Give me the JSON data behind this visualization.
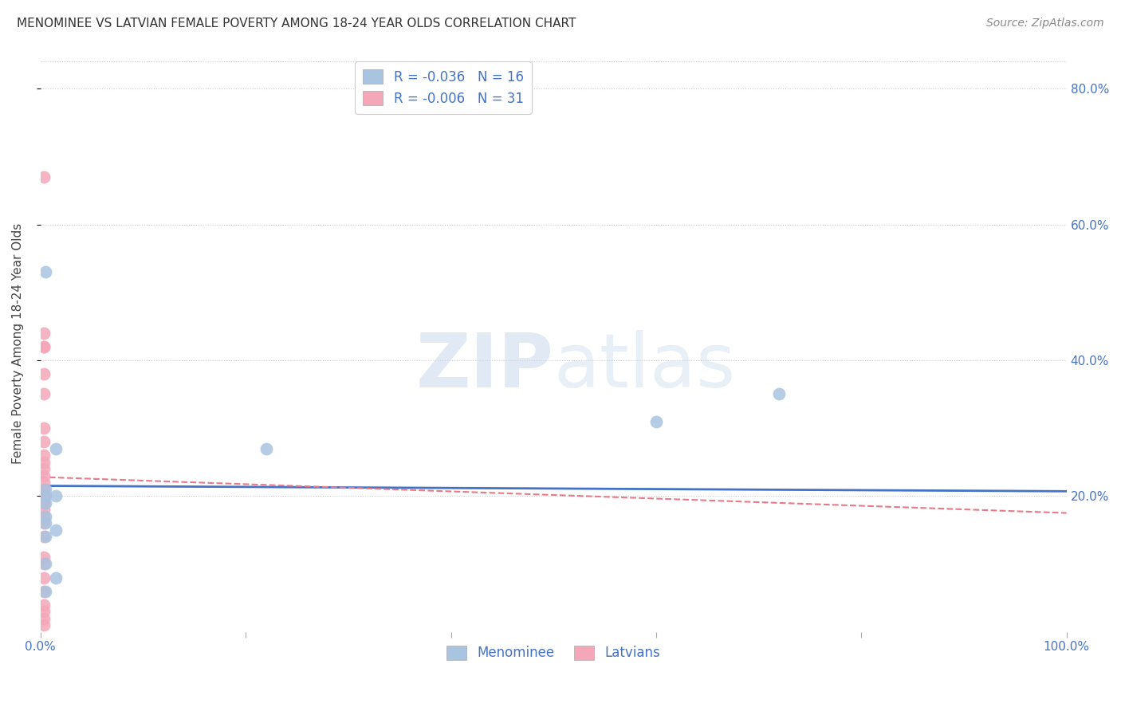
{
  "title": "MENOMINEE VS LATVIAN FEMALE POVERTY AMONG 18-24 YEAR OLDS CORRELATION CHART",
  "source": "Source: ZipAtlas.com",
  "ylabel": "Female Poverty Among 18-24 Year Olds",
  "xlim": [
    0.0,
    1.0
  ],
  "ylim": [
    0.0,
    0.85
  ],
  "menominee_R": "-0.036",
  "menominee_N": "16",
  "latvian_R": "-0.006",
  "latvian_N": "31",
  "menominee_color": "#a8c4e0",
  "latvian_color": "#f4a7b9",
  "menominee_line_color": "#4472c4",
  "latvian_line_color": "#e8788a",
  "watermark_zip": "ZIP",
  "watermark_atlas": "atlas",
  "legend_label_menominee": "Menominee",
  "legend_label_latvian": "Latvians",
  "menominee_x": [
    0.005,
    0.005,
    0.005,
    0.005,
    0.005,
    0.005,
    0.005,
    0.005,
    0.005,
    0.015,
    0.015,
    0.015,
    0.015,
    0.22,
    0.6,
    0.72
  ],
  "menominee_y": [
    0.53,
    0.21,
    0.2,
    0.19,
    0.17,
    0.16,
    0.14,
    0.1,
    0.06,
    0.27,
    0.2,
    0.15,
    0.08,
    0.27,
    0.31,
    0.35
  ],
  "latvian_x": [
    0.003,
    0.003,
    0.003,
    0.003,
    0.003,
    0.003,
    0.003,
    0.003,
    0.003,
    0.003,
    0.003,
    0.003,
    0.003,
    0.003,
    0.003,
    0.003,
    0.003,
    0.003,
    0.003,
    0.003,
    0.003,
    0.003,
    0.003,
    0.003,
    0.003,
    0.003,
    0.003,
    0.003,
    0.003,
    0.003,
    0.003
  ],
  "latvian_y": [
    0.67,
    0.44,
    0.42,
    0.42,
    0.38,
    0.35,
    0.3,
    0.28,
    0.26,
    0.25,
    0.24,
    0.23,
    0.22,
    0.21,
    0.21,
    0.2,
    0.2,
    0.19,
    0.19,
    0.18,
    0.17,
    0.16,
    0.14,
    0.11,
    0.1,
    0.08,
    0.06,
    0.04,
    0.03,
    0.02,
    0.01
  ],
  "menominee_line_x": [
    0.0,
    1.0
  ],
  "menominee_line_y": [
    0.215,
    0.207
  ],
  "latvian_line_x": [
    0.0,
    1.0
  ],
  "latvian_line_y": [
    0.228,
    0.175
  ],
  "grid_color": "#cccccc",
  "grid_linestyle": ":",
  "tick_color": "#4472c4",
  "background_color": "#ffffff",
  "title_color": "#333333",
  "source_color": "#888888",
  "ytick_positions": [
    0.2,
    0.4,
    0.6,
    0.8
  ],
  "ytick_labels": [
    "20.0%",
    "40.0%",
    "60.0%",
    "80.0%"
  ],
  "xtick_positions": [
    0.0,
    0.2,
    0.4,
    0.6,
    0.8,
    1.0
  ],
  "xtick_labels_show": [
    "0.0%",
    "",
    "",
    "",
    "",
    "100.0%"
  ]
}
